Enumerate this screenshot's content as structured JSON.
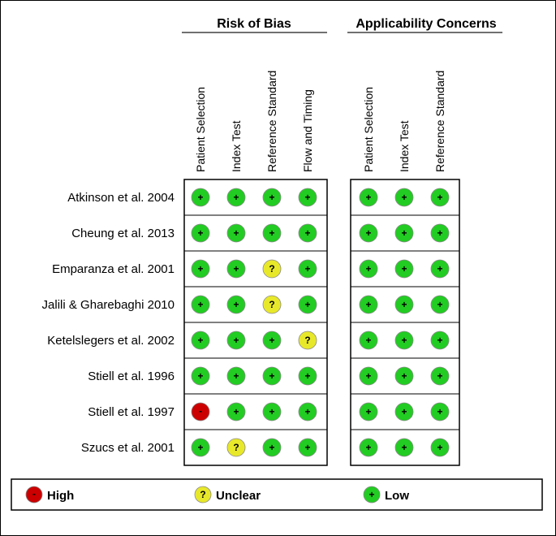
{
  "chart_data": {
    "type": "table",
    "groups": [
      {
        "title": "Risk of Bias",
        "columns": [
          "Patient Selection",
          "Index Test",
          "Reference Standard",
          "Flow and Timing"
        ]
      },
      {
        "title": "Applicability Concerns",
        "columns": [
          "Patient Selection",
          "Index Test",
          "Reference Standard"
        ]
      }
    ],
    "rows": [
      {
        "study": "Atkinson et al. 2004",
        "risk_of_bias": [
          "low",
          "low",
          "low",
          "low"
        ],
        "applicability": [
          "low",
          "low",
          "low"
        ]
      },
      {
        "study": "Cheung et al. 2013",
        "risk_of_bias": [
          "low",
          "low",
          "low",
          "low"
        ],
        "applicability": [
          "low",
          "low",
          "low"
        ]
      },
      {
        "study": "Emparanza et al. 2001",
        "risk_of_bias": [
          "low",
          "low",
          "unclear",
          "low"
        ],
        "applicability": [
          "low",
          "low",
          "low"
        ]
      },
      {
        "study": "Jalili & Gharebaghi 2010",
        "risk_of_bias": [
          "low",
          "low",
          "unclear",
          "low"
        ],
        "applicability": [
          "low",
          "low",
          "low"
        ]
      },
      {
        "study": "Ketelslegers et al. 2002",
        "risk_of_bias": [
          "low",
          "low",
          "low",
          "unclear"
        ],
        "applicability": [
          "low",
          "low",
          "low"
        ]
      },
      {
        "study": "Stiell et al. 1996",
        "risk_of_bias": [
          "low",
          "low",
          "low",
          "low"
        ],
        "applicability": [
          "low",
          "low",
          "low"
        ]
      },
      {
        "study": "Stiell et al. 1997",
        "risk_of_bias": [
          "high",
          "low",
          "low",
          "low"
        ],
        "applicability": [
          "low",
          "low",
          "low"
        ]
      },
      {
        "study": "Szucs et al. 2001",
        "risk_of_bias": [
          "low",
          "unclear",
          "low",
          "low"
        ],
        "applicability": [
          "low",
          "low",
          "low"
        ]
      }
    ],
    "legend": [
      {
        "key": "high",
        "label": "High",
        "symbol": "-",
        "color": "#cc0000"
      },
      {
        "key": "unclear",
        "label": "Unclear",
        "symbol": "?",
        "color": "#e8e82a"
      },
      {
        "key": "low",
        "label": "Low",
        "symbol": "+",
        "color": "#22cc22"
      }
    ]
  }
}
